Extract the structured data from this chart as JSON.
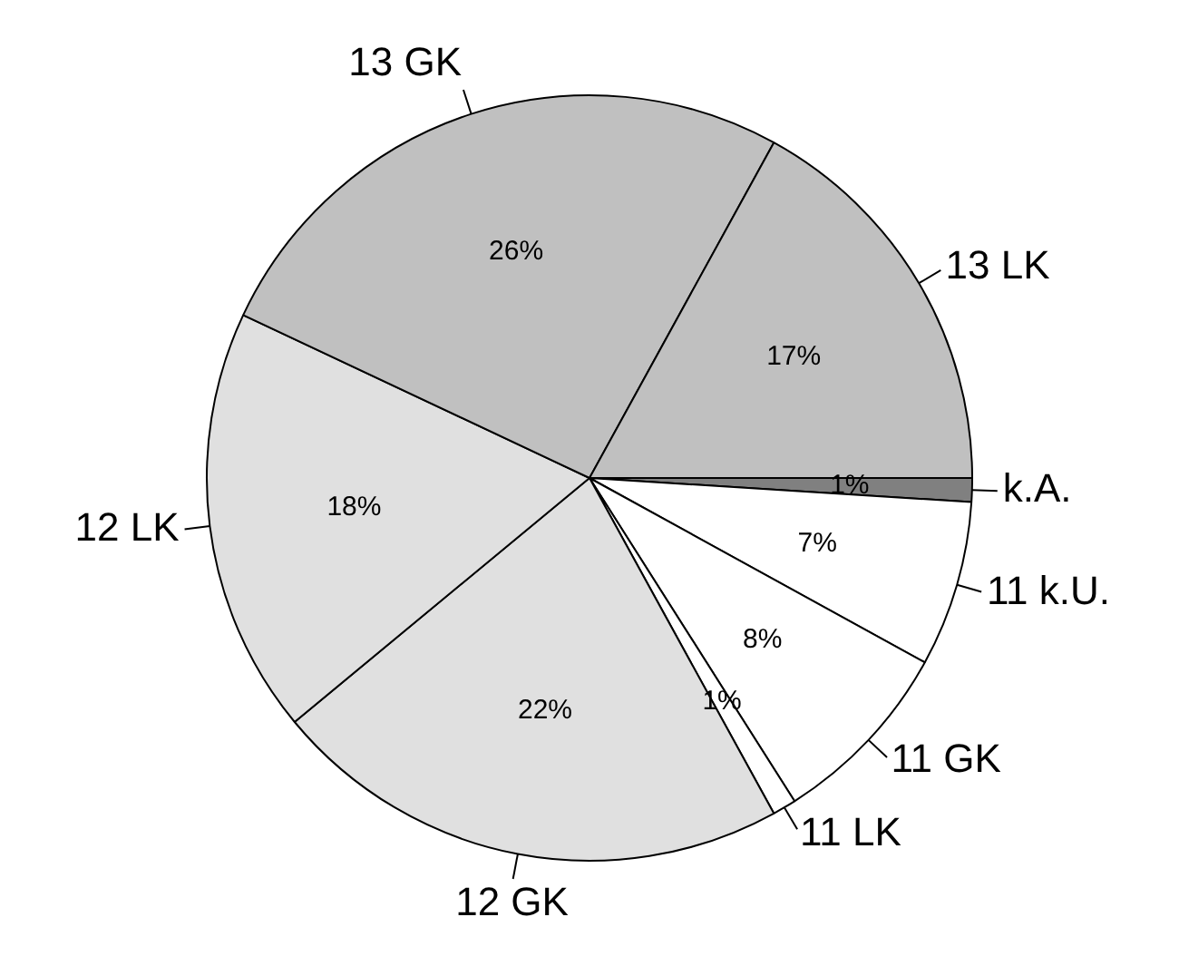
{
  "chart_data": {
    "type": "pie",
    "categories": [
      "k.A.",
      "11 k.U.",
      "11 GK",
      "11 LK",
      "12 GK",
      "12 LK",
      "13 GK",
      "13 LK"
    ],
    "values": [
      1,
      7,
      8,
      1,
      22,
      18,
      26,
      17
    ],
    "colors": [
      "#808080",
      "#ffffff",
      "#ffffff",
      "#ffffff",
      "#e0e0e0",
      "#e0e0e0",
      "#c0c0c0",
      "#c0c0c0"
    ],
    "value_labels": [
      "1%",
      "7%",
      "8%",
      "1%",
      "22%",
      "18%",
      "26%",
      "17%"
    ],
    "legend": false
  }
}
